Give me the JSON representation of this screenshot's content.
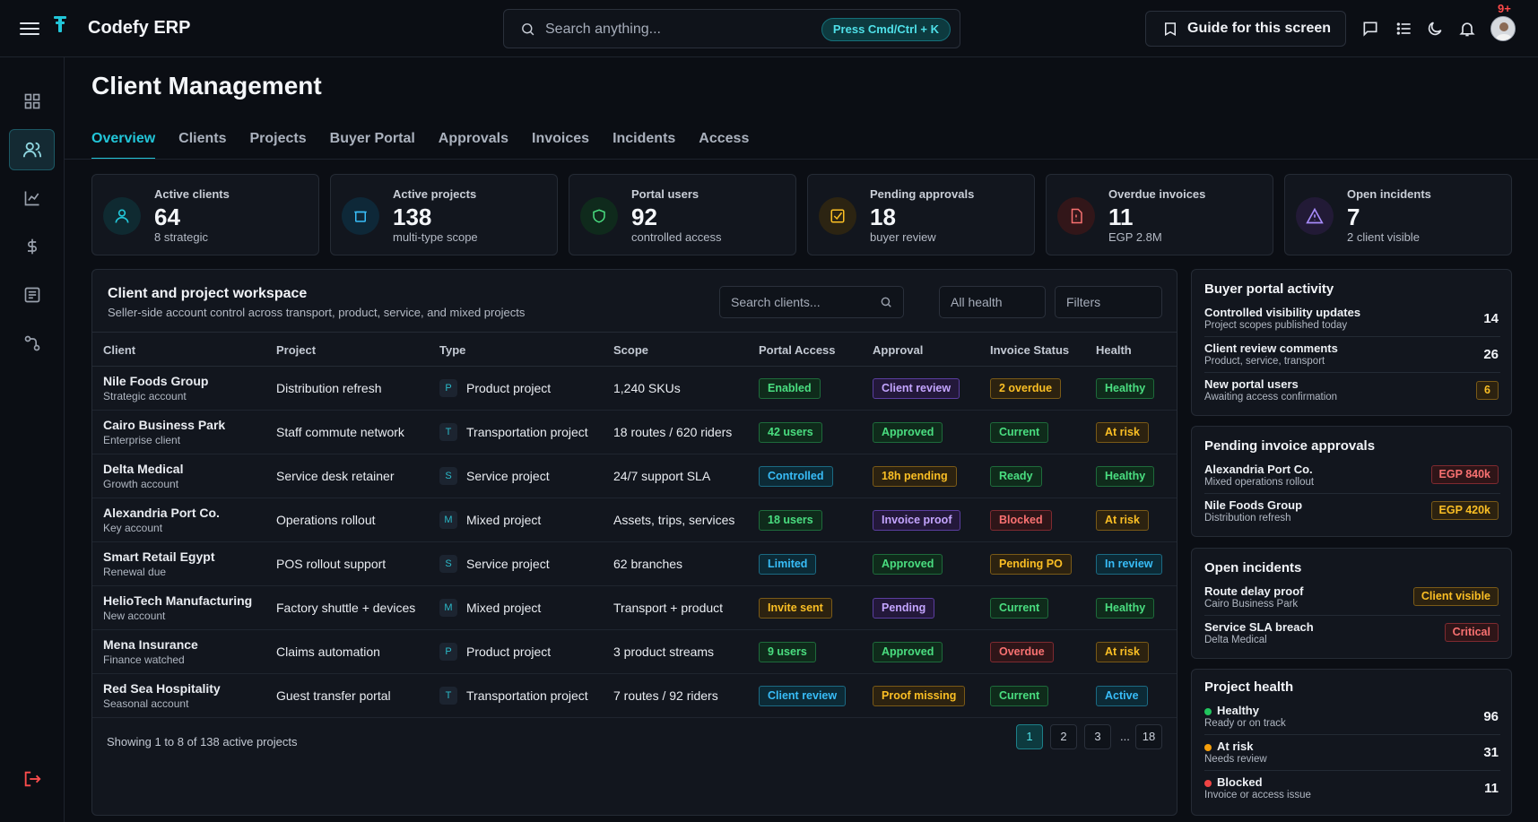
{
  "app": {
    "brand": "Codefy ERP",
    "search_placeholder": "Search anything...",
    "search_shortcut": "Press Cmd/Ctrl + K",
    "guide_label": "Guide for this screen",
    "notification_count": "9+"
  },
  "page": {
    "title": "Client Management",
    "tabs": [
      "Overview",
      "Clients",
      "Projects",
      "Buyer Portal",
      "Approvals",
      "Invoices",
      "Incidents",
      "Access"
    ],
    "active_tab": "Overview"
  },
  "stats": [
    {
      "label": "Active clients",
      "value": "64",
      "sub": "8 strategic",
      "icon": "users-icon",
      "color": "#22c6d9"
    },
    {
      "label": "Active projects",
      "value": "138",
      "sub": "multi-type scope",
      "icon": "folder-icon",
      "color": "#38bdf8"
    },
    {
      "label": "Portal users",
      "value": "92",
      "sub": "controlled access",
      "icon": "shield-icon",
      "color": "#4ade80"
    },
    {
      "label": "Pending approvals",
      "value": "18",
      "sub": "buyer review",
      "icon": "checkbox-icon",
      "color": "#fbbf24"
    },
    {
      "label": "Overdue invoices",
      "value": "11",
      "sub": "EGP 2.8M",
      "icon": "document-icon",
      "color": "#f87171"
    },
    {
      "label": "Open incidents",
      "value": "7",
      "sub": "2 client visible",
      "icon": "warning-icon",
      "color": "#a78bfa"
    }
  ],
  "workspace": {
    "title": "Client and project workspace",
    "subtitle": "Seller-side account control across transport, product, service, and mixed projects",
    "search_placeholder": "Search clients...",
    "health_filter": "All health",
    "filters_label": "Filters",
    "columns": [
      "Client",
      "Project",
      "Type",
      "Scope",
      "Portal Access",
      "Approval",
      "Invoice Status",
      "Health"
    ],
    "rows": [
      {
        "client": "Nile Foods Group",
        "client_sub": "Strategic account",
        "project": "Distribution refresh",
        "type_letter": "P",
        "type": "Product project",
        "scope": "1,240 SKUs",
        "portal": "Enabled",
        "portal_tone": "green",
        "approval": "Client review",
        "approval_tone": "purple",
        "invoice": "2 overdue",
        "invoice_tone": "amber",
        "health": "Healthy",
        "health_tone": "green"
      },
      {
        "client": "Cairo Business Park",
        "client_sub": "Enterprise client",
        "project": "Staff commute network",
        "type_letter": "T",
        "type": "Transportation project",
        "scope": "18 routes / 620 riders",
        "portal": "42 users",
        "portal_tone": "green",
        "approval": "Approved",
        "approval_tone": "green",
        "invoice": "Current",
        "invoice_tone": "green",
        "health": "At risk",
        "health_tone": "amber"
      },
      {
        "client": "Delta Medical",
        "client_sub": "Growth account",
        "project": "Service desk retainer",
        "type_letter": "S",
        "type": "Service project",
        "scope": "24/7 support SLA",
        "portal": "Controlled",
        "portal_tone": "cyan",
        "approval": "18h pending",
        "approval_tone": "amber",
        "invoice": "Ready",
        "invoice_tone": "green",
        "health": "Healthy",
        "health_tone": "green"
      },
      {
        "client": "Alexandria Port Co.",
        "client_sub": "Key account",
        "project": "Operations rollout",
        "type_letter": "M",
        "type": "Mixed project",
        "scope": "Assets, trips, services",
        "portal": "18 users",
        "portal_tone": "green",
        "approval": "Invoice proof",
        "approval_tone": "purple",
        "invoice": "Blocked",
        "invoice_tone": "red",
        "health": "At risk",
        "health_tone": "amber"
      },
      {
        "client": "Smart Retail Egypt",
        "client_sub": "Renewal due",
        "project": "POS rollout support",
        "type_letter": "S",
        "type": "Service project",
        "scope": "62 branches",
        "portal": "Limited",
        "portal_tone": "cyan",
        "approval": "Approved",
        "approval_tone": "green",
        "invoice": "Pending PO",
        "invoice_tone": "amber",
        "health": "In review",
        "health_tone": "cyan"
      },
      {
        "client": "HelioTech Manufacturing",
        "client_sub": "New account",
        "project": "Factory shuttle + devices",
        "type_letter": "M",
        "type": "Mixed project",
        "scope": "Transport + product",
        "portal": "Invite sent",
        "portal_tone": "amber",
        "approval": "Pending",
        "approval_tone": "purple",
        "invoice": "Current",
        "invoice_tone": "green",
        "health": "Healthy",
        "health_tone": "green"
      },
      {
        "client": "Mena Insurance",
        "client_sub": "Finance watched",
        "project": "Claims automation",
        "type_letter": "P",
        "type": "Product project",
        "scope": "3 product streams",
        "portal": "9 users",
        "portal_tone": "green",
        "approval": "Approved",
        "approval_tone": "green",
        "invoice": "Overdue",
        "invoice_tone": "red",
        "health": "At risk",
        "health_tone": "amber"
      },
      {
        "client": "Red Sea Hospitality",
        "client_sub": "Seasonal account",
        "project": "Guest transfer portal",
        "type_letter": "T",
        "type": "Transportation project",
        "scope": "7 routes / 92 riders",
        "portal": "Client review",
        "portal_tone": "cyan",
        "approval": "Proof missing",
        "approval_tone": "amber",
        "invoice": "Current",
        "invoice_tone": "green",
        "health": "Active",
        "health_tone": "cyan"
      }
    ],
    "footer": "Showing 1 to 8 of 138 active projects",
    "pages": [
      "1",
      "2",
      "3",
      "...",
      "18"
    ]
  },
  "buyer_portal": {
    "title": "Buyer portal activity",
    "items": [
      {
        "title": "Controlled visibility updates",
        "sub": "Project scopes published today",
        "value": "14"
      },
      {
        "title": "Client review comments",
        "sub": "Product, service, transport",
        "value": "26"
      },
      {
        "title": "New portal users",
        "sub": "Awaiting access confirmation",
        "value": "6"
      }
    ]
  },
  "pending_invoices": {
    "title": "Pending invoice approvals",
    "items": [
      {
        "title": "Alexandria Port Co.",
        "sub": "Mixed operations rollout",
        "value": "EGP 840k"
      },
      {
        "title": "Nile Foods Group",
        "sub": "Distribution refresh",
        "value": "EGP 420k"
      }
    ]
  },
  "open_incidents": {
    "title": "Open incidents",
    "items": [
      {
        "title": "Route delay proof",
        "sub": "Cairo Business Park",
        "value": "Client visible"
      },
      {
        "title": "Service SLA breach",
        "sub": "Delta Medical",
        "value": "Critical"
      }
    ]
  },
  "project_health": {
    "title": "Project health",
    "items": [
      {
        "title": "Healthy",
        "sub": "Ready or on track",
        "value": "96",
        "color": "#22c55e"
      },
      {
        "title": "At risk",
        "sub": "Needs review",
        "value": "31",
        "color": "#f59e0b"
      },
      {
        "title": "Blocked",
        "sub": "Invoice or access issue",
        "value": "11",
        "color": "#ef4444"
      }
    ]
  }
}
